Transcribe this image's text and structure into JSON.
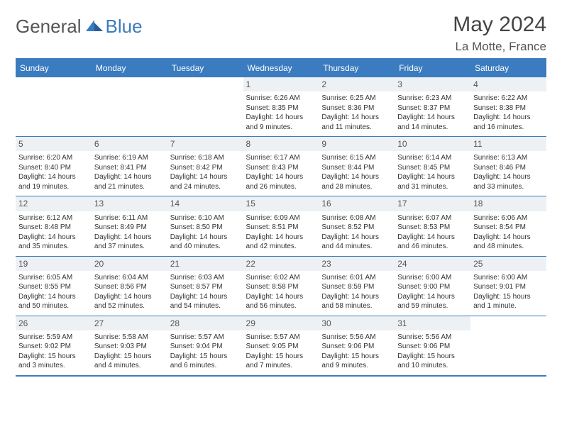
{
  "brand": {
    "part1": "General",
    "part2": "Blue"
  },
  "title": "May 2024",
  "location": "La Motte, France",
  "colors": {
    "accent": "#3b7bbf",
    "dayBg": "#eef1f3",
    "text": "#333333",
    "white": "#ffffff"
  },
  "dayHeaders": [
    "Sunday",
    "Monday",
    "Tuesday",
    "Wednesday",
    "Thursday",
    "Friday",
    "Saturday"
  ],
  "weeks": [
    [
      {
        "n": "",
        "sr": "",
        "ss": "",
        "dl": ""
      },
      {
        "n": "",
        "sr": "",
        "ss": "",
        "dl": ""
      },
      {
        "n": "",
        "sr": "",
        "ss": "",
        "dl": ""
      },
      {
        "n": "1",
        "sr": "Sunrise: 6:26 AM",
        "ss": "Sunset: 8:35 PM",
        "dl": "Daylight: 14 hours and 9 minutes."
      },
      {
        "n": "2",
        "sr": "Sunrise: 6:25 AM",
        "ss": "Sunset: 8:36 PM",
        "dl": "Daylight: 14 hours and 11 minutes."
      },
      {
        "n": "3",
        "sr": "Sunrise: 6:23 AM",
        "ss": "Sunset: 8:37 PM",
        "dl": "Daylight: 14 hours and 14 minutes."
      },
      {
        "n": "4",
        "sr": "Sunrise: 6:22 AM",
        "ss": "Sunset: 8:38 PM",
        "dl": "Daylight: 14 hours and 16 minutes."
      }
    ],
    [
      {
        "n": "5",
        "sr": "Sunrise: 6:20 AM",
        "ss": "Sunset: 8:40 PM",
        "dl": "Daylight: 14 hours and 19 minutes."
      },
      {
        "n": "6",
        "sr": "Sunrise: 6:19 AM",
        "ss": "Sunset: 8:41 PM",
        "dl": "Daylight: 14 hours and 21 minutes."
      },
      {
        "n": "7",
        "sr": "Sunrise: 6:18 AM",
        "ss": "Sunset: 8:42 PM",
        "dl": "Daylight: 14 hours and 24 minutes."
      },
      {
        "n": "8",
        "sr": "Sunrise: 6:17 AM",
        "ss": "Sunset: 8:43 PM",
        "dl": "Daylight: 14 hours and 26 minutes."
      },
      {
        "n": "9",
        "sr": "Sunrise: 6:15 AM",
        "ss": "Sunset: 8:44 PM",
        "dl": "Daylight: 14 hours and 28 minutes."
      },
      {
        "n": "10",
        "sr": "Sunrise: 6:14 AM",
        "ss": "Sunset: 8:45 PM",
        "dl": "Daylight: 14 hours and 31 minutes."
      },
      {
        "n": "11",
        "sr": "Sunrise: 6:13 AM",
        "ss": "Sunset: 8:46 PM",
        "dl": "Daylight: 14 hours and 33 minutes."
      }
    ],
    [
      {
        "n": "12",
        "sr": "Sunrise: 6:12 AM",
        "ss": "Sunset: 8:48 PM",
        "dl": "Daylight: 14 hours and 35 minutes."
      },
      {
        "n": "13",
        "sr": "Sunrise: 6:11 AM",
        "ss": "Sunset: 8:49 PM",
        "dl": "Daylight: 14 hours and 37 minutes."
      },
      {
        "n": "14",
        "sr": "Sunrise: 6:10 AM",
        "ss": "Sunset: 8:50 PM",
        "dl": "Daylight: 14 hours and 40 minutes."
      },
      {
        "n": "15",
        "sr": "Sunrise: 6:09 AM",
        "ss": "Sunset: 8:51 PM",
        "dl": "Daylight: 14 hours and 42 minutes."
      },
      {
        "n": "16",
        "sr": "Sunrise: 6:08 AM",
        "ss": "Sunset: 8:52 PM",
        "dl": "Daylight: 14 hours and 44 minutes."
      },
      {
        "n": "17",
        "sr": "Sunrise: 6:07 AM",
        "ss": "Sunset: 8:53 PM",
        "dl": "Daylight: 14 hours and 46 minutes."
      },
      {
        "n": "18",
        "sr": "Sunrise: 6:06 AM",
        "ss": "Sunset: 8:54 PM",
        "dl": "Daylight: 14 hours and 48 minutes."
      }
    ],
    [
      {
        "n": "19",
        "sr": "Sunrise: 6:05 AM",
        "ss": "Sunset: 8:55 PM",
        "dl": "Daylight: 14 hours and 50 minutes."
      },
      {
        "n": "20",
        "sr": "Sunrise: 6:04 AM",
        "ss": "Sunset: 8:56 PM",
        "dl": "Daylight: 14 hours and 52 minutes."
      },
      {
        "n": "21",
        "sr": "Sunrise: 6:03 AM",
        "ss": "Sunset: 8:57 PM",
        "dl": "Daylight: 14 hours and 54 minutes."
      },
      {
        "n": "22",
        "sr": "Sunrise: 6:02 AM",
        "ss": "Sunset: 8:58 PM",
        "dl": "Daylight: 14 hours and 56 minutes."
      },
      {
        "n": "23",
        "sr": "Sunrise: 6:01 AM",
        "ss": "Sunset: 8:59 PM",
        "dl": "Daylight: 14 hours and 58 minutes."
      },
      {
        "n": "24",
        "sr": "Sunrise: 6:00 AM",
        "ss": "Sunset: 9:00 PM",
        "dl": "Daylight: 14 hours and 59 minutes."
      },
      {
        "n": "25",
        "sr": "Sunrise: 6:00 AM",
        "ss": "Sunset: 9:01 PM",
        "dl": "Daylight: 15 hours and 1 minute."
      }
    ],
    [
      {
        "n": "26",
        "sr": "Sunrise: 5:59 AM",
        "ss": "Sunset: 9:02 PM",
        "dl": "Daylight: 15 hours and 3 minutes."
      },
      {
        "n": "27",
        "sr": "Sunrise: 5:58 AM",
        "ss": "Sunset: 9:03 PM",
        "dl": "Daylight: 15 hours and 4 minutes."
      },
      {
        "n": "28",
        "sr": "Sunrise: 5:57 AM",
        "ss": "Sunset: 9:04 PM",
        "dl": "Daylight: 15 hours and 6 minutes."
      },
      {
        "n": "29",
        "sr": "Sunrise: 5:57 AM",
        "ss": "Sunset: 9:05 PM",
        "dl": "Daylight: 15 hours and 7 minutes."
      },
      {
        "n": "30",
        "sr": "Sunrise: 5:56 AM",
        "ss": "Sunset: 9:06 PM",
        "dl": "Daylight: 15 hours and 9 minutes."
      },
      {
        "n": "31",
        "sr": "Sunrise: 5:56 AM",
        "ss": "Sunset: 9:06 PM",
        "dl": "Daylight: 15 hours and 10 minutes."
      },
      {
        "n": "",
        "sr": "",
        "ss": "",
        "dl": ""
      }
    ]
  ]
}
